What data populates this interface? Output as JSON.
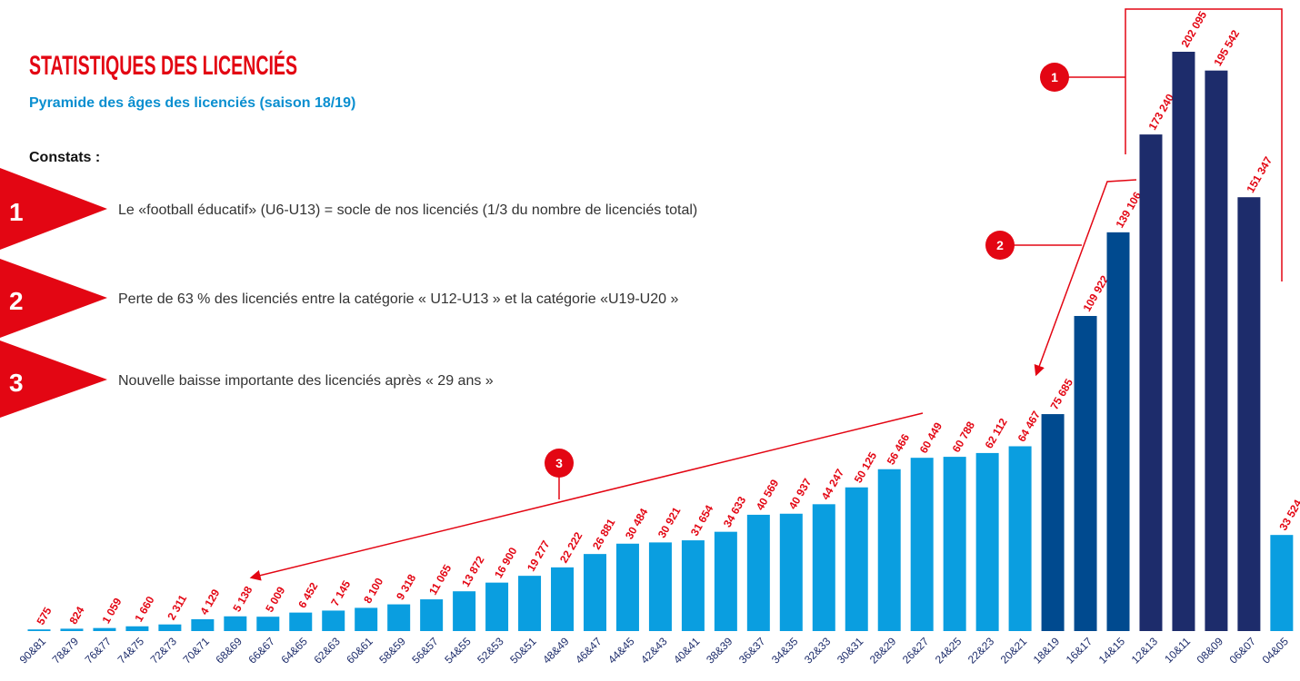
{
  "chart_data": {
    "type": "bar",
    "title": "STATISTIQUES DES LICENCIÉS",
    "subtitle": "Pyramide des âges des licenciés (saison 18/19)",
    "constats": {
      "heading": "Constats :",
      "items": [
        {
          "number": "1",
          "text": "Le «football éducatif» (U6-U13) = socle de nos licenciés (1/3 du nombre de licenciés total)"
        },
        {
          "number": "2",
          "text": "Perte de 63 % des licenciés entre la catégorie « U12-U13 » et la catégorie  «U19-U20 »"
        },
        {
          "number": "3",
          "text": "Nouvelle baisse importante des licenciés après « 29 ans »"
        }
      ]
    },
    "categories": [
      "90&81",
      "78&79",
      "76&77",
      "74&75",
      "72&73",
      "70&71",
      "68&69",
      "66&67",
      "64&65",
      "62&63",
      "60&61",
      "58&59",
      "56&57",
      "54&55",
      "52&53",
      "50&51",
      "48&49",
      "46&47",
      "44&45",
      "42&43",
      "40&41",
      "38&39",
      "36&37",
      "34&35",
      "32&33",
      "30&31",
      "28&29",
      "26&27",
      "24&25",
      "22&23",
      "20&21",
      "18&19",
      "16&17",
      "14&15",
      "12&13",
      "10&11",
      "08&09",
      "06&07",
      "04&05"
    ],
    "values": [
      575,
      824,
      1059,
      1660,
      2311,
      4129,
      5138,
      5009,
      6452,
      7145,
      8100,
      9318,
      11065,
      13872,
      16900,
      19277,
      22222,
      26881,
      30484,
      30921,
      31654,
      34633,
      40569,
      40937,
      44247,
      50125,
      56466,
      60449,
      60788,
      62112,
      64467,
      75685,
      109922,
      139106,
      173240,
      202095,
      195542,
      151347,
      33524
    ],
    "value_labels": [
      "575",
      "824",
      "1 059",
      "1 660",
      "2 311",
      "4 129",
      "5 138",
      "5 009",
      "6 452",
      "7 145",
      "8 100",
      "9 318",
      "11 065",
      "13 872",
      "16 900",
      "19 277",
      "22 222",
      "26 881",
      "30 484",
      "30 921",
      "31 654",
      "34 633",
      "40 569",
      "40 937",
      "44 247",
      "50 125",
      "56 466",
      "60 449",
      "60 788",
      "62 112",
      "64 467",
      "75 685",
      "109 922",
      "139 106",
      "173 240",
      "202 095",
      "195 542",
      "151 347",
      "33 524"
    ],
    "colors": [
      "#0a9ee0",
      "#0a9ee0",
      "#0a9ee0",
      "#0a9ee0",
      "#0a9ee0",
      "#0a9ee0",
      "#0a9ee0",
      "#0a9ee0",
      "#0a9ee0",
      "#0a9ee0",
      "#0a9ee0",
      "#0a9ee0",
      "#0a9ee0",
      "#0a9ee0",
      "#0a9ee0",
      "#0a9ee0",
      "#0a9ee0",
      "#0a9ee0",
      "#0a9ee0",
      "#0a9ee0",
      "#0a9ee0",
      "#0a9ee0",
      "#0a9ee0",
      "#0a9ee0",
      "#0a9ee0",
      "#0a9ee0",
      "#0a9ee0",
      "#0a9ee0",
      "#0a9ee0",
      "#0a9ee0",
      "#0a9ee0",
      "#004a8f",
      "#004a8f",
      "#004a8f",
      "#1d2c6b",
      "#1d2c6b",
      "#1d2c6b",
      "#1d2c6b",
      "#0a9ee0"
    ],
    "value_label_color": "#e30613"
  }
}
